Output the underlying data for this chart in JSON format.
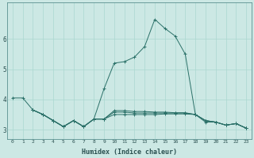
{
  "xlabel": "Humidex (Indice chaleur)",
  "bg_color": "#cce8e4",
  "grid_color": "#aad8d0",
  "line_color": "#2a7068",
  "xlim": [
    -0.5,
    23.5
  ],
  "ylim": [
    2.7,
    7.2
  ],
  "yticks": [
    3,
    4,
    5,
    6
  ],
  "xticks": [
    0,
    1,
    2,
    3,
    4,
    5,
    6,
    7,
    8,
    9,
    10,
    11,
    12,
    13,
    14,
    15,
    16,
    17,
    18,
    19,
    20,
    21,
    22,
    23
  ],
  "line1_x": [
    0,
    1,
    2,
    3,
    4,
    5,
    6,
    7,
    8,
    9,
    10,
    11,
    12,
    13,
    14,
    15,
    16,
    17,
    18,
    19,
    20,
    21,
    22,
    23
  ],
  "line1_y": [
    4.05,
    4.05,
    3.65,
    3.5,
    3.3,
    3.1,
    3.3,
    3.1,
    3.35,
    4.35,
    5.2,
    5.25,
    5.4,
    5.75,
    6.65,
    6.35,
    6.1,
    5.5,
    3.5,
    3.25,
    3.25,
    3.15,
    3.2,
    3.05
  ],
  "line2_x": [
    2,
    3,
    4,
    5,
    6,
    7,
    8,
    9,
    10,
    11,
    12,
    13,
    14,
    15,
    16,
    17,
    18,
    19,
    20,
    21,
    22,
    23
  ],
  "line2_y": [
    3.65,
    3.5,
    3.3,
    3.1,
    3.3,
    3.1,
    3.35,
    3.35,
    3.5,
    3.5,
    3.5,
    3.5,
    3.5,
    3.52,
    3.52,
    3.52,
    3.5,
    3.3,
    3.25,
    3.15,
    3.2,
    3.05
  ],
  "line3_x": [
    2,
    3,
    4,
    5,
    6,
    7,
    8,
    9,
    10,
    11,
    12,
    13,
    14,
    15,
    16,
    17,
    18,
    19,
    20,
    21,
    22,
    23
  ],
  "line3_y": [
    3.65,
    3.5,
    3.3,
    3.1,
    3.3,
    3.1,
    3.35,
    3.35,
    3.58,
    3.58,
    3.55,
    3.55,
    3.55,
    3.55,
    3.55,
    3.55,
    3.5,
    3.3,
    3.25,
    3.15,
    3.2,
    3.05
  ],
  "line4_x": [
    2,
    3,
    4,
    5,
    6,
    7,
    8,
    9,
    10,
    11,
    12,
    13,
    14,
    15,
    16,
    17,
    18,
    19,
    20,
    21,
    22,
    23
  ],
  "line4_y": [
    3.65,
    3.5,
    3.3,
    3.1,
    3.3,
    3.1,
    3.35,
    3.35,
    3.63,
    3.63,
    3.6,
    3.6,
    3.58,
    3.58,
    3.56,
    3.56,
    3.5,
    3.3,
    3.25,
    3.15,
    3.2,
    3.05
  ]
}
